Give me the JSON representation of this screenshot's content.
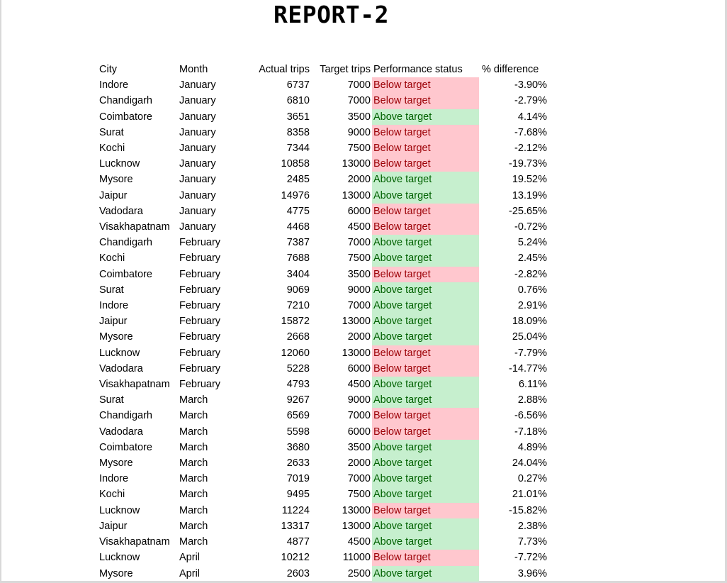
{
  "title": "REPORT-2",
  "table": {
    "headers": [
      "City",
      "Month",
      "Actual trips",
      "Target trips",
      "Performance status",
      "% difference"
    ],
    "rows": [
      [
        "Indore",
        "January",
        "6737",
        "7000",
        "Below target",
        "-3.90%"
      ],
      [
        "Chandigarh",
        "January",
        "6810",
        "7000",
        "Below target",
        "-2.79%"
      ],
      [
        "Coimbatore",
        "January",
        "3651",
        "3500",
        "Above target",
        "4.14%"
      ],
      [
        "Surat",
        "January",
        "8358",
        "9000",
        "Below target",
        "-7.68%"
      ],
      [
        "Kochi",
        "January",
        "7344",
        "7500",
        "Below target",
        "-2.12%"
      ],
      [
        "Lucknow",
        "January",
        "10858",
        "13000",
        "Below target",
        "-19.73%"
      ],
      [
        "Mysore",
        "January",
        "2485",
        "2000",
        "Above target",
        "19.52%"
      ],
      [
        "Jaipur",
        "January",
        "14976",
        "13000",
        "Above target",
        "13.19%"
      ],
      [
        "Vadodara",
        "January",
        "4775",
        "6000",
        "Below target",
        "-25.65%"
      ],
      [
        "Visakhapatnam",
        "January",
        "4468",
        "4500",
        "Below target",
        "-0.72%"
      ],
      [
        "Chandigarh",
        "February",
        "7387",
        "7000",
        "Above target",
        "5.24%"
      ],
      [
        "Kochi",
        "February",
        "7688",
        "7500",
        "Above target",
        "2.45%"
      ],
      [
        "Coimbatore",
        "February",
        "3404",
        "3500",
        "Below target",
        "-2.82%"
      ],
      [
        "Surat",
        "February",
        "9069",
        "9000",
        "Above target",
        "0.76%"
      ],
      [
        "Indore",
        "February",
        "7210",
        "7000",
        "Above target",
        "2.91%"
      ],
      [
        "Jaipur",
        "February",
        "15872",
        "13000",
        "Above target",
        "18.09%"
      ],
      [
        "Mysore",
        "February",
        "2668",
        "2000",
        "Above target",
        "25.04%"
      ],
      [
        "Lucknow",
        "February",
        "12060",
        "13000",
        "Below target",
        "-7.79%"
      ],
      [
        "Vadodara",
        "February",
        "5228",
        "6000",
        "Below target",
        "-14.77%"
      ],
      [
        "Visakhapatnam",
        "February",
        "4793",
        "4500",
        "Above target",
        "6.11%"
      ],
      [
        "Surat",
        "March",
        "9267",
        "9000",
        "Above target",
        "2.88%"
      ],
      [
        "Chandigarh",
        "March",
        "6569",
        "7000",
        "Below target",
        "-6.56%"
      ],
      [
        "Vadodara",
        "March",
        "5598",
        "6000",
        "Below target",
        "-7.18%"
      ],
      [
        "Coimbatore",
        "March",
        "3680",
        "3500",
        "Above target",
        "4.89%"
      ],
      [
        "Mysore",
        "March",
        "2633",
        "2000",
        "Above target",
        "24.04%"
      ],
      [
        "Indore",
        "March",
        "7019",
        "7000",
        "Above target",
        "0.27%"
      ],
      [
        "Kochi",
        "March",
        "9495",
        "7500",
        "Above target",
        "21.01%"
      ],
      [
        "Lucknow",
        "March",
        "11224",
        "13000",
        "Below target",
        "-15.82%"
      ],
      [
        "Jaipur",
        "March",
        "13317",
        "13000",
        "Above target",
        "2.38%"
      ],
      [
        "Visakhapatnam",
        "March",
        "4877",
        "4500",
        "Above target",
        "7.73%"
      ],
      [
        "Lucknow",
        "April",
        "10212",
        "11000",
        "Below target",
        "-7.72%"
      ],
      [
        "Mysore",
        "April",
        "2603",
        "2500",
        "Above target",
        "3.96%"
      ]
    ]
  },
  "colors": {
    "below_fill": "#ffc7ce",
    "below_text": "#9c0006",
    "above_fill": "#c6efce",
    "above_text": "#006100"
  }
}
